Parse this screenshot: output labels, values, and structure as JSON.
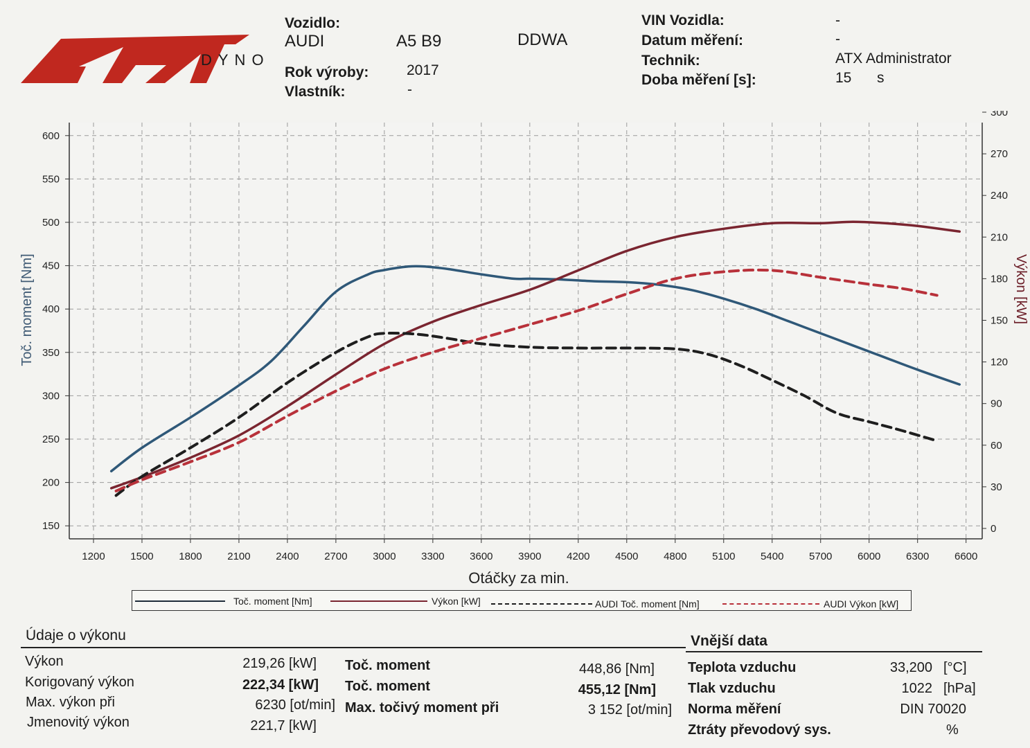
{
  "logo": {
    "main": "ATX",
    "sub": "DYNO",
    "colors": {
      "red": "#c0281f",
      "dark": "#1a1a1a"
    }
  },
  "vehicle": {
    "vozidlo_label": "Vozidlo:",
    "make": "AUDI",
    "model": "A5 B9",
    "engine": "DDWA",
    "rok_label": "Rok výroby:",
    "rok_value": "2017",
    "vlastnik_label": "Vlastník:",
    "vlastnik_value": "-"
  },
  "measurement": {
    "vin_label": "VIN Vozidla:",
    "vin_value": "-",
    "datum_label": "Datum měření:",
    "datum_value": "-",
    "technik_label": "Technik:",
    "technik_value": "ATX Administrator",
    "doba_label": "Doba měření [s]:",
    "doba_value": "15",
    "doba_unit": "s"
  },
  "chart_data": {
    "type": "line",
    "xlabel": "Otáčky za min.",
    "ylabel_left": "Toč. moment [Nm]",
    "ylabel_right": "Výkon [kW]",
    "xlim": [
      1050,
      6700
    ],
    "xticks": [
      1200,
      1500,
      1800,
      2100,
      2400,
      2700,
      3000,
      3300,
      3600,
      3900,
      4200,
      4500,
      4800,
      5100,
      5400,
      5700,
      6000,
      6300,
      6600
    ],
    "ylim_left": [
      135,
      615
    ],
    "yticks_left": [
      150,
      200,
      250,
      300,
      350,
      400,
      450,
      500,
      550,
      600
    ],
    "ylim_right": [
      -7.5,
      292.5
    ],
    "yticks_right": [
      0,
      30,
      60,
      90,
      120,
      150,
      180,
      210,
      240,
      270,
      300
    ],
    "grid": true,
    "legend_position": "bottom",
    "series": [
      {
        "name": "Toč. moment [Nm]",
        "axis": "left",
        "color": "#2f5878",
        "dash": "solid",
        "x": [
          1310,
          1500,
          1800,
          2100,
          2300,
          2500,
          2700,
          2900,
          3000,
          3150,
          3250,
          3400,
          3600,
          3800,
          3900,
          4100,
          4300,
          4500,
          4700,
          4900,
          5100,
          5300,
          5500,
          5700,
          5900,
          6100,
          6300,
          6560
        ],
        "y": [
          213,
          240,
          275,
          312,
          340,
          380,
          420,
          440,
          445,
          449,
          449,
          446,
          440,
          435,
          435,
          434,
          432,
          431,
          428,
          422,
          412,
          400,
          386,
          372,
          358,
          344,
          330,
          313
        ]
      },
      {
        "name": "Výkon [kW]",
        "axis": "right",
        "color": "#7a2530",
        "dash": "solid",
        "x": [
          1310,
          1500,
          1800,
          2100,
          2400,
          2700,
          3000,
          3300,
          3600,
          3900,
          4200,
          4500,
          4800,
          5100,
          5400,
          5700,
          5900,
          6100,
          6300,
          6560
        ],
        "y": [
          29,
          37,
          51,
          67,
          88,
          111,
          133,
          149,
          161,
          172,
          186,
          200,
          210,
          216,
          220,
          220,
          221,
          220,
          218,
          214
        ]
      },
      {
        "name": "AUDI Toč. moment [Nm]",
        "axis": "left",
        "color": "#1e1e1e",
        "dash": "dashed",
        "x": [
          1340,
          1500,
          1800,
          2100,
          2400,
          2700,
          2900,
          3000,
          3200,
          3400,
          3600,
          3900,
          4200,
          4500,
          4800,
          5000,
          5200,
          5400,
          5600,
          5800,
          6000,
          6200,
          6420
        ],
        "y": [
          185,
          207,
          240,
          275,
          315,
          350,
          368,
          372,
          371,
          366,
          360,
          356,
          355,
          355,
          354,
          348,
          335,
          318,
          300,
          280,
          270,
          260,
          248
        ]
      },
      {
        "name": "AUDI Výkon [kW]",
        "axis": "right",
        "color": "#b8313a",
        "dash": "dashed",
        "x": [
          1340,
          1500,
          1800,
          2100,
          2400,
          2700,
          3000,
          3300,
          3600,
          3900,
          4200,
          4500,
          4800,
          5100,
          5400,
          5700,
          6000,
          6200,
          6420
        ],
        "y": [
          27,
          35,
          48,
          62,
          81,
          99,
          115,
          127,
          137,
          147,
          157,
          169,
          180,
          185,
          186,
          181,
          176,
          173,
          168
        ]
      }
    ]
  },
  "vykon_data": {
    "title": "Údaje o výkonu",
    "rows": [
      {
        "label": "Výkon",
        "value": "219,26 [kW]",
        "label2": "Toč. moment",
        "value2": "448,86 [Nm]"
      },
      {
        "label": "Korigovaný výkon",
        "value": "222,34 [kW]",
        "label2": "Toč. moment",
        "value2": "455,12 [Nm]"
      },
      {
        "label": "Max. výkon při",
        "value": "6230 [ot/min]",
        "label2": "Max. točivý moment při",
        "value2": "3 152 [ot/min]"
      },
      {
        "label": "Jmenovitý výkon",
        "value": "221,7 [kW]"
      }
    ]
  },
  "vnejsi_data": {
    "title": "Vnější data",
    "rows": [
      {
        "label": "Teplota vzduchu",
        "value": "33,200",
        "unit": "[°C]"
      },
      {
        "label": "Tlak vzduchu",
        "value": "1022",
        "unit": "[hPa]"
      },
      {
        "label": "Norma měření",
        "value": "DIN 70020",
        "unit": ""
      },
      {
        "label": "Ztráty převodový sys.",
        "value": "",
        "unit": "%"
      }
    ]
  }
}
